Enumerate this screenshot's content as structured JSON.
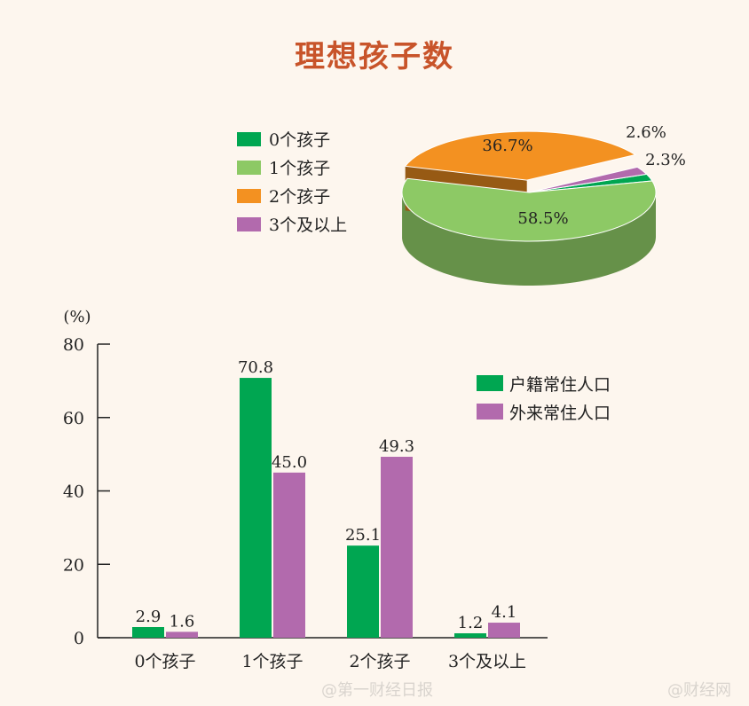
{
  "title": "理想孩子数",
  "watermarks": [
    "@第一财经日报",
    "@财经网"
  ],
  "colors": {
    "c0": "#00a651",
    "c1": "#8dc965",
    "c2": "#f39121",
    "c3": "#b26aad",
    "title": "#c8542a"
  },
  "chart_data": [
    {
      "type": "pie",
      "legend_placement": "left",
      "labels": [
        "0个孩子",
        "1个孩子",
        "2个孩子",
        "3个及以上"
      ],
      "values": [
        2.3,
        58.5,
        36.7,
        2.6
      ],
      "value_labels": [
        "2.3%",
        "58.5%",
        "36.7%",
        "2.6%"
      ],
      "style": "3d-exploded"
    },
    {
      "type": "bar",
      "categories": [
        "0个孩子",
        "1个孩子",
        "2个孩子",
        "3个及以上"
      ],
      "series": [
        {
          "name": "户籍常住人口",
          "values": [
            2.9,
            70.8,
            25.1,
            1.2
          ],
          "labels": [
            "2.9",
            "70.8",
            "25.1",
            "1.2"
          ]
        },
        {
          "name": "外来常住人口",
          "values": [
            1.6,
            45.0,
            49.3,
            4.1
          ],
          "labels": [
            "1.6",
            "45.0",
            "49.3",
            "4.1"
          ]
        }
      ],
      "ylabel": "(%)",
      "ylim": [
        0,
        80
      ],
      "yticks": [
        "0",
        "20",
        "40",
        "60",
        "80"
      ],
      "legend_placement": "top-right",
      "grid": false
    }
  ]
}
